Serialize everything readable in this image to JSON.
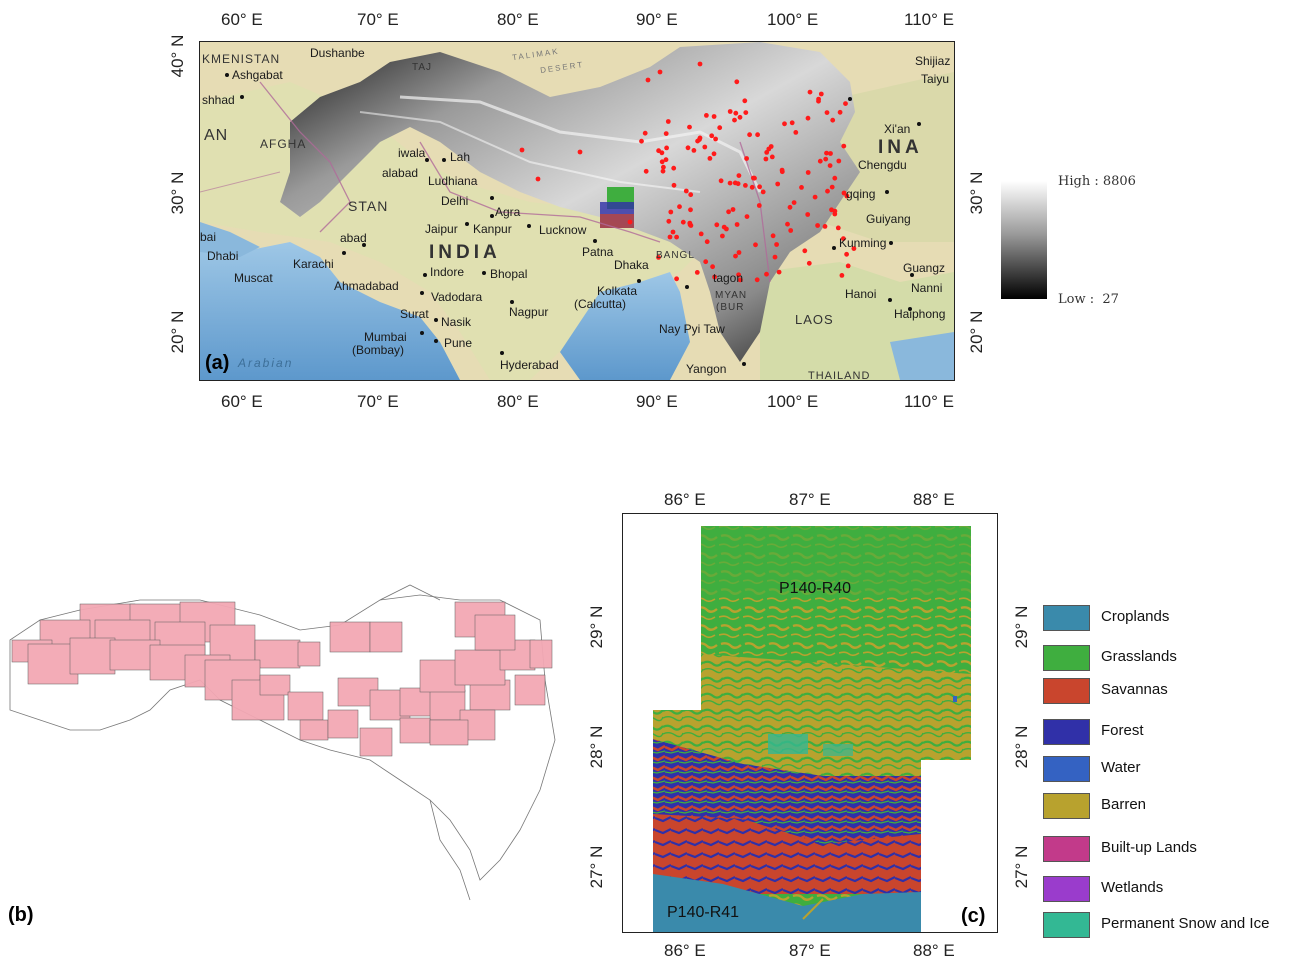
{
  "panel_a": {
    "label": "(a)",
    "top_ticks": [
      "60° E",
      "70° E",
      "80° E",
      "90° E",
      "100° E",
      "110° E"
    ],
    "bottom_ticks": [
      "60° E",
      "70° E",
      "80° E",
      "90° E",
      "100° E",
      "110° E"
    ],
    "left_ticks": [
      "40° N",
      "30° N",
      "20° N"
    ],
    "right_ticks": [
      "30° N",
      "20° N"
    ],
    "colorbar": {
      "high_label": "High : 8806",
      "low_label": "Low :  27"
    },
    "cities": [
      "KMENISTAN",
      "Dushanbe",
      "TAJ",
      "Ashgabat",
      "shhad",
      "AFGHA",
      "AN",
      "iwala",
      "Lah",
      "alabad",
      "Ludhiana",
      "Delhi",
      "Agra",
      "Jaipur",
      "Kanpur",
      "Lucknow",
      "INDIA",
      "Patna",
      "Dhaka",
      "BANGL",
      "Kolkata",
      "(Calcutta)",
      "Indore",
      "Bhopal",
      "Ahmadabad",
      "Vadodara",
      "Surat",
      "Nasik",
      "Nagpur",
      "Mumbai",
      "(Bombay)",
      "Pune",
      "Hyderabad",
      "Arabian",
      "Karachi",
      "Muscat",
      "Dhabi",
      "bai",
      "abad",
      "STAN",
      "Shijiaz",
      "Taiyu",
      "Xi'an",
      "Chengdu",
      "INA",
      "gqing",
      "Guiyang",
      "Kunming",
      "Guangz",
      "Nanni",
      "Hanoi",
      "Haiphong",
      "LAOS",
      "THAILAND",
      "Yangon",
      "Nay Pyi Taw",
      "tagon",
      "MYAN",
      "(BUR",
      "TALIMAK",
      "DESERT"
    ],
    "sample_points_count": 150,
    "accent_point_color": "#ff1a1a"
  },
  "panel_b": {
    "label": "(b)"
  },
  "panel_c": {
    "label": "(c)",
    "top_ticks": [
      "86° E",
      "87° E",
      "88° E"
    ],
    "bottom_ticks": [
      "86° E",
      "87° E",
      "88° E"
    ],
    "left_ticks": [
      "29° N",
      "28° N",
      "27° N"
    ],
    "right_ticks": [
      "29° N",
      "28° N",
      "27° N"
    ],
    "scene_labels": [
      "P140-R40",
      "P140-R41"
    ]
  },
  "legend": [
    {
      "label": "Croplands",
      "color": "#3a8aab"
    },
    {
      "label": "Grasslands",
      "color": "#3fae3f"
    },
    {
      "label": "Savannas",
      "color": "#c9452d"
    },
    {
      "label": "Forest",
      "color": "#3030a8"
    },
    {
      "label": "Water",
      "color": "#3462c2"
    },
    {
      "label": "Barren",
      "color": "#b8a22e"
    },
    {
      "label": "Built-up Lands",
      "color": "#c23a8a"
    },
    {
      "label": "Wetlands",
      "color": "#9a3ccc"
    },
    {
      "label": "Permanent Snow and Ice",
      "color": "#33b894"
    }
  ]
}
